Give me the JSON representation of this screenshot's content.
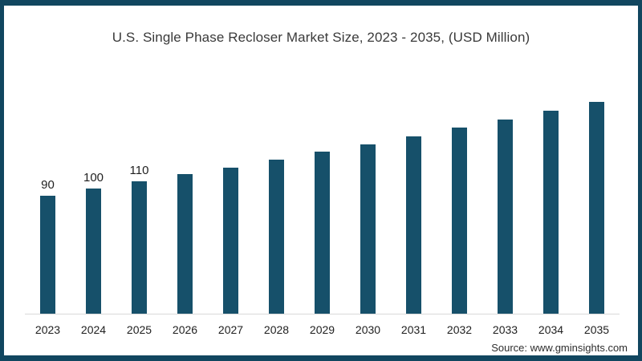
{
  "chart_data": {
    "type": "bar",
    "title": "U.S. Single Phase Recloser Market Size, 2023 - 2035, (USD Million)",
    "categories": [
      "2023",
      "2024",
      "2025",
      "2026",
      "2027",
      "2028",
      "2029",
      "2030",
      "2031",
      "2032",
      "2033",
      "2034",
      "2035"
    ],
    "values": [
      90,
      100,
      110,
      120,
      130,
      141,
      152,
      162,
      174,
      186,
      198,
      210,
      223
    ],
    "data_labels": [
      "90",
      "100",
      "110",
      "",
      "",
      "",
      "",
      "",
      "",
      "",
      "",
      "",
      ""
    ],
    "xlabel": "",
    "ylabel": "",
    "legend": "none",
    "grid": false,
    "bar_color": "#16506a"
  },
  "source": "Source: www.gminsights.com",
  "colors": {
    "frame": "#11465f",
    "bar": "#16506a",
    "axis_line": "#d9d9d9",
    "title_text": "#3a3a3a",
    "label_text": "#1f1f1f"
  }
}
